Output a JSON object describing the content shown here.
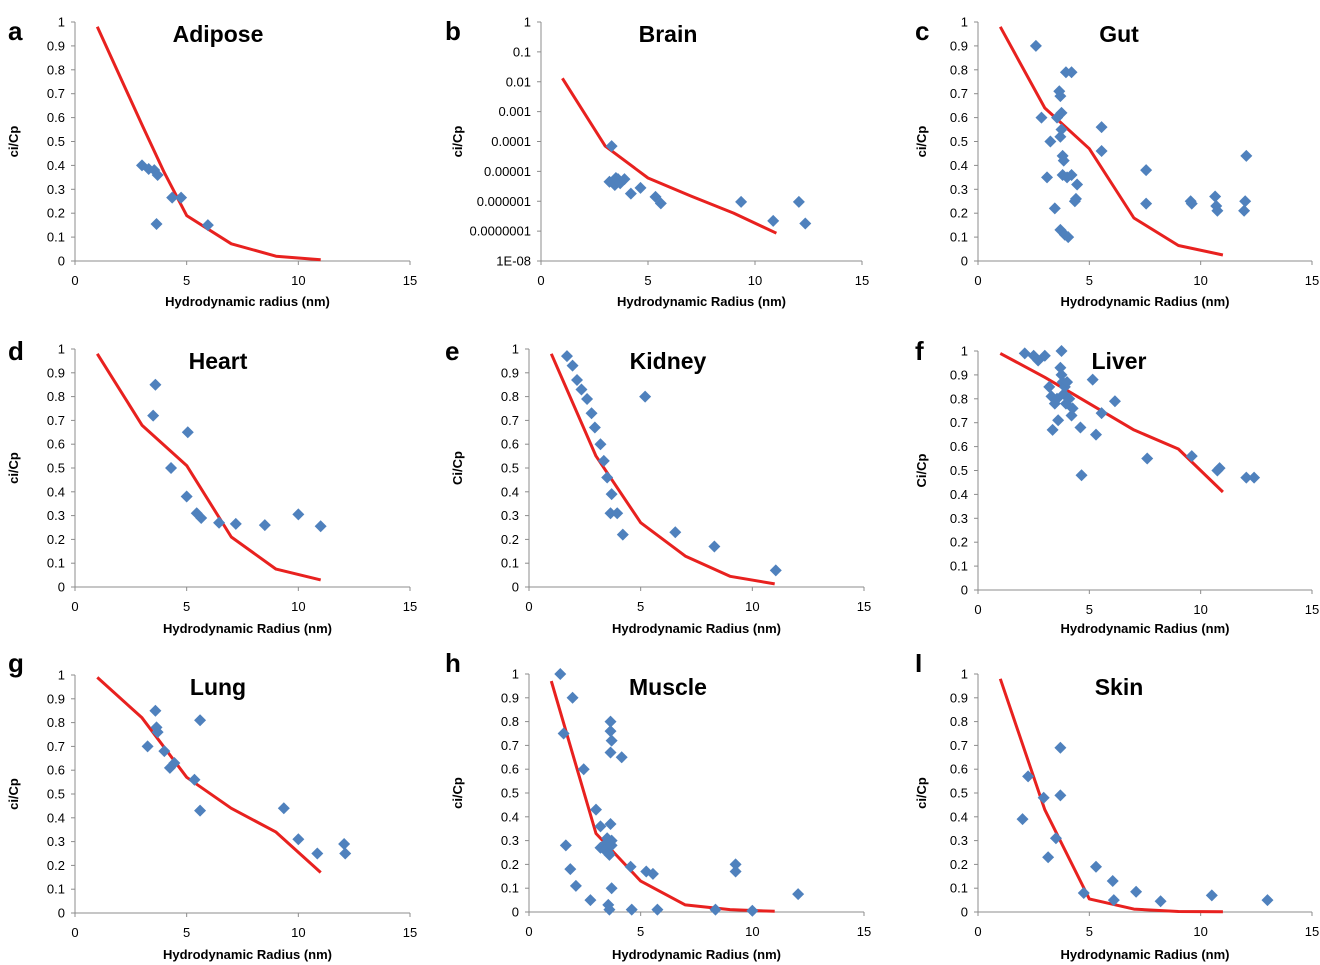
{
  "chart_data": [
    {
      "type": "scatter",
      "panel_letter": "a",
      "title": "Adipose",
      "xlabel": "Hydrodynamic radius (nm)",
      "ylabel": "ci/Cp",
      "xlim": [
        0,
        15
      ],
      "ylim": [
        0,
        1
      ],
      "yscale": "linear",
      "xticks": [
        "0",
        "5",
        "10",
        "15"
      ],
      "yticks": [
        "0",
        "0.1",
        "0.2",
        "0.3",
        "0.4",
        "0.5",
        "0.6",
        "0.7",
        "0.8",
        "0.9",
        "1"
      ],
      "points": [
        [
          3.0,
          0.4
        ],
        [
          3.3,
          0.385
        ],
        [
          3.55,
          0.38
        ],
        [
          3.7,
          0.36
        ],
        [
          3.65,
          0.155
        ],
        [
          4.35,
          0.265
        ],
        [
          4.75,
          0.265
        ],
        [
          5.95,
          0.15
        ]
      ],
      "line": [
        [
          1.0,
          0.98
        ],
        [
          3.0,
          0.57
        ],
        [
          4.0,
          0.37
        ],
        [
          5.0,
          0.19
        ],
        [
          7.0,
          0.072
        ],
        [
          9.0,
          0.02
        ],
        [
          11.0,
          0.005
        ]
      ],
      "colors": {
        "points": "#4f81bd",
        "line": "#e8211f"
      }
    },
    {
      "type": "scatter",
      "panel_letter": "b",
      "title": "Brain",
      "xlabel": "Hydrodynamic Radius (nm)",
      "ylabel": "ci/Cp",
      "xlim": [
        0,
        15
      ],
      "ylim": [
        1e-08,
        1
      ],
      "yscale": "log",
      "xticks": [
        "0",
        "5",
        "10",
        "15"
      ],
      "yticks": [
        "1E-08",
        "0.0000001",
        "0.000001",
        "0.00001",
        "0.0001",
        "0.001",
        "0.01",
        "0.1",
        "1"
      ],
      "points": [
        [
          3.3,
          7e-05
        ],
        [
          3.2,
          4.5e-06
        ],
        [
          3.45,
          3.5e-06
        ],
        [
          3.6,
          5.5e-06
        ],
        [
          3.5,
          6e-06
        ],
        [
          3.7,
          4e-06
        ],
        [
          3.9,
          5.5e-06
        ],
        [
          4.2,
          1.8e-06
        ],
        [
          4.65,
          2.8e-06
        ],
        [
          5.35,
          1.4e-06
        ],
        [
          5.6,
          8.5e-07
        ],
        [
          9.35,
          9.5e-07
        ],
        [
          10.85,
          2.2e-07
        ],
        [
          12.05,
          9.5e-07
        ],
        [
          12.35,
          1.8e-07
        ]
      ],
      "line": [
        [
          1.0,
          0.013
        ],
        [
          3.0,
          7e-05
        ],
        [
          5.0,
          6e-06
        ],
        [
          7.0,
          1.5e-06
        ],
        [
          9.0,
          4e-07
        ],
        [
          11.0,
          8.5e-08
        ]
      ],
      "colors": {
        "points": "#4f81bd",
        "line": "#e8211f"
      }
    },
    {
      "type": "scatter",
      "panel_letter": "c",
      "title": "Gut",
      "xlabel": "Hydrodynamic Radius (nm)",
      "ylabel": "ci/Cp",
      "xlim": [
        0,
        15
      ],
      "ylim": [
        0,
        1
      ],
      "yscale": "linear",
      "xticks": [
        "0",
        "5",
        "10",
        "15"
      ],
      "yticks": [
        "0",
        "0.1",
        "0.2",
        "0.3",
        "0.4",
        "0.5",
        "0.6",
        "0.7",
        "0.8",
        "0.9",
        "1"
      ],
      "points": [
        [
          2.6,
          0.9
        ],
        [
          2.85,
          0.6
        ],
        [
          3.1,
          0.35
        ],
        [
          3.25,
          0.5
        ],
        [
          3.45,
          0.22
        ],
        [
          3.55,
          0.6
        ],
        [
          3.65,
          0.71
        ],
        [
          3.7,
          0.69
        ],
        [
          3.75,
          0.55
        ],
        [
          3.7,
          0.52
        ],
        [
          3.8,
          0.44
        ],
        [
          3.85,
          0.42
        ],
        [
          3.7,
          0.13
        ],
        [
          3.9,
          0.11
        ],
        [
          4.05,
          0.1
        ],
        [
          3.95,
          0.79
        ],
        [
          4.2,
          0.79
        ],
        [
          3.8,
          0.36
        ],
        [
          4.0,
          0.35
        ],
        [
          4.2,
          0.36
        ],
        [
          3.75,
          0.62
        ],
        [
          4.4,
          0.26
        ],
        [
          4.45,
          0.32
        ],
        [
          4.35,
          0.25
        ],
        [
          5.55,
          0.56
        ],
        [
          5.55,
          0.46
        ],
        [
          7.55,
          0.38
        ],
        [
          7.55,
          0.24
        ],
        [
          9.55,
          0.25
        ],
        [
          9.6,
          0.24
        ],
        [
          10.65,
          0.27
        ],
        [
          10.7,
          0.23
        ],
        [
          10.75,
          0.21
        ],
        [
          12.05,
          0.44
        ],
        [
          12.0,
          0.25
        ],
        [
          11.95,
          0.21
        ]
      ],
      "line": [
        [
          1.0,
          0.98
        ],
        [
          3.0,
          0.64
        ],
        [
          5.0,
          0.47
        ],
        [
          7.0,
          0.18
        ],
        [
          9.0,
          0.065
        ],
        [
          11.0,
          0.025
        ]
      ],
      "colors": {
        "points": "#4f81bd",
        "line": "#e8211f"
      }
    },
    {
      "type": "scatter",
      "panel_letter": "d",
      "title": "Heart",
      "xlabel": "Hydrodynamic Radius (nm)",
      "ylabel": "ci/Cp",
      "xlim": [
        0,
        15
      ],
      "ylim": [
        0,
        1
      ],
      "yscale": "linear",
      "xticks": [
        "0",
        "5",
        "10",
        "15"
      ],
      "yticks": [
        "0",
        "0.1",
        "0.2",
        "0.3",
        "0.4",
        "0.5",
        "0.6",
        "0.7",
        "0.8",
        "0.9",
        "1"
      ],
      "points": [
        [
          3.6,
          0.85
        ],
        [
          3.5,
          0.72
        ],
        [
          5.05,
          0.65
        ],
        [
          4.3,
          0.5
        ],
        [
          5.0,
          0.38
        ],
        [
          5.45,
          0.31
        ],
        [
          5.65,
          0.29
        ],
        [
          6.45,
          0.27
        ],
        [
          7.2,
          0.265
        ],
        [
          8.5,
          0.26
        ],
        [
          10.0,
          0.305
        ],
        [
          11.0,
          0.255
        ]
      ],
      "line": [
        [
          1.0,
          0.98
        ],
        [
          3.0,
          0.68
        ],
        [
          5.0,
          0.51
        ],
        [
          7.0,
          0.21
        ],
        [
          9.0,
          0.075
        ],
        [
          11.0,
          0.03
        ]
      ],
      "colors": {
        "points": "#4f81bd",
        "line": "#e8211f"
      }
    },
    {
      "type": "scatter",
      "panel_letter": "e",
      "title": "Kidney",
      "xlabel": "Hydrodynamic Radius (nm)",
      "ylabel": "Ci/Cp",
      "xlim": [
        0,
        15
      ],
      "ylim": [
        0,
        1
      ],
      "yscale": "linear",
      "xticks": [
        "0",
        "5",
        "10",
        "15"
      ],
      "yticks": [
        "0",
        "0.1",
        "0.2",
        "0.3",
        "0.4",
        "0.5",
        "0.6",
        "0.7",
        "0.8",
        "0.9",
        "1"
      ],
      "points": [
        [
          1.7,
          0.97
        ],
        [
          1.95,
          0.93
        ],
        [
          2.15,
          0.87
        ],
        [
          2.35,
          0.83
        ],
        [
          2.6,
          0.79
        ],
        [
          2.8,
          0.73
        ],
        [
          2.95,
          0.67
        ],
        [
          3.2,
          0.6
        ],
        [
          3.35,
          0.53
        ],
        [
          3.5,
          0.46
        ],
        [
          3.7,
          0.39
        ],
        [
          3.65,
          0.31
        ],
        [
          3.95,
          0.31
        ],
        [
          4.2,
          0.22
        ],
        [
          5.2,
          0.8
        ],
        [
          6.55,
          0.23
        ],
        [
          8.3,
          0.17
        ],
        [
          11.05,
          0.07
        ]
      ],
      "line": [
        [
          1.0,
          0.98
        ],
        [
          3.0,
          0.55
        ],
        [
          5.0,
          0.27
        ],
        [
          7.0,
          0.13
        ],
        [
          9.0,
          0.045
        ],
        [
          11.0,
          0.013
        ]
      ],
      "colors": {
        "points": "#4f81bd",
        "line": "#e8211f"
      }
    },
    {
      "type": "scatter",
      "panel_letter": "f",
      "title": "Liver",
      "xlabel": "Hydrodynamic Radius (nm)",
      "ylabel": "Ci/Cp",
      "xlim": [
        0,
        15
      ],
      "ylim": [
        0,
        1
      ],
      "yscale": "linear",
      "xticks": [
        "0",
        "5",
        "10",
        "15"
      ],
      "yticks": [
        "0",
        "0.1",
        "0.2",
        "0.3",
        "0.4",
        "0.5",
        "0.6",
        "0.7",
        "0.8",
        "0.9",
        "1"
      ],
      "points": [
        [
          2.1,
          0.99
        ],
        [
          2.5,
          0.98
        ],
        [
          2.7,
          0.96
        ],
        [
          3.0,
          0.98
        ],
        [
          3.2,
          0.85
        ],
        [
          3.3,
          0.81
        ],
        [
          3.35,
          0.67
        ],
        [
          3.45,
          0.78
        ],
        [
          3.55,
          0.8
        ],
        [
          3.6,
          0.71
        ],
        [
          3.75,
          1.0
        ],
        [
          3.7,
          0.93
        ],
        [
          3.75,
          0.9
        ],
        [
          3.8,
          0.87
        ],
        [
          3.85,
          0.82
        ],
        [
          3.95,
          0.78
        ],
        [
          4.1,
          0.8
        ],
        [
          4.25,
          0.76
        ],
        [
          4.2,
          0.73
        ],
        [
          3.9,
          0.85
        ],
        [
          4.0,
          0.87
        ],
        [
          4.6,
          0.68
        ],
        [
          4.65,
          0.48
        ],
        [
          5.15,
          0.88
        ],
        [
          5.3,
          0.65
        ],
        [
          5.55,
          0.74
        ],
        [
          6.15,
          0.79
        ],
        [
          7.6,
          0.55
        ],
        [
          9.6,
          0.56
        ],
        [
          10.75,
          0.5
        ],
        [
          10.85,
          0.51
        ],
        [
          12.05,
          0.47
        ],
        [
          12.4,
          0.47
        ]
      ],
      "line": [
        [
          1.0,
          0.99
        ],
        [
          3.0,
          0.89
        ],
        [
          5.0,
          0.78
        ],
        [
          7.0,
          0.67
        ],
        [
          9.0,
          0.59
        ],
        [
          11.0,
          0.41
        ]
      ],
      "colors": {
        "points": "#4f81bd",
        "line": "#e8211f"
      }
    },
    {
      "type": "scatter",
      "panel_letter": "g",
      "title": "Lung",
      "xlabel": "Hydrodynamic Radius (nm)",
      "ylabel": "ci/Cp",
      "xlim": [
        0,
        15
      ],
      "ylim": [
        0,
        1
      ],
      "yscale": "linear",
      "xticks": [
        "0",
        "5",
        "10",
        "15"
      ],
      "yticks": [
        "0",
        "0.1",
        "0.2",
        "0.3",
        "0.4",
        "0.5",
        "0.6",
        "0.7",
        "0.8",
        "0.9",
        "1"
      ],
      "points": [
        [
          3.25,
          0.7
        ],
        [
          3.6,
          0.85
        ],
        [
          3.65,
          0.78
        ],
        [
          3.7,
          0.76
        ],
        [
          4.0,
          0.68
        ],
        [
          4.25,
          0.61
        ],
        [
          4.45,
          0.63
        ],
        [
          5.35,
          0.56
        ],
        [
          5.6,
          0.81
        ],
        [
          5.6,
          0.43
        ],
        [
          9.35,
          0.44
        ],
        [
          10.0,
          0.31
        ],
        [
          10.85,
          0.25
        ],
        [
          12.05,
          0.29
        ],
        [
          12.1,
          0.25
        ]
      ],
      "line": [
        [
          1.0,
          0.99
        ],
        [
          3.0,
          0.82
        ],
        [
          5.0,
          0.57
        ],
        [
          7.0,
          0.44
        ],
        [
          9.0,
          0.34
        ],
        [
          11.0,
          0.17
        ]
      ],
      "colors": {
        "points": "#4f81bd",
        "line": "#e8211f"
      }
    },
    {
      "type": "scatter",
      "panel_letter": "h",
      "title": "Muscle",
      "xlabel": "Hydrodynamic Radius (nm)",
      "ylabel": "ci/Cp",
      "xlim": [
        0,
        15
      ],
      "ylim": [
        0,
        1
      ],
      "yscale": "linear",
      "xticks": [
        "0",
        "5",
        "10",
        "15"
      ],
      "yticks": [
        "0",
        "0.1",
        "0.2",
        "0.3",
        "0.4",
        "0.5",
        "0.6",
        "0.7",
        "0.8",
        "0.9",
        "1"
      ],
      "points": [
        [
          1.4,
          1.0
        ],
        [
          1.55,
          0.75
        ],
        [
          1.95,
          0.9
        ],
        [
          1.65,
          0.28
        ],
        [
          1.85,
          0.18
        ],
        [
          2.1,
          0.11
        ],
        [
          2.45,
          0.6
        ],
        [
          2.75,
          0.05
        ],
        [
          3.0,
          0.43
        ],
        [
          3.2,
          0.36
        ],
        [
          3.2,
          0.27
        ],
        [
          3.35,
          0.28
        ],
        [
          3.4,
          0.26
        ],
        [
          3.5,
          0.31
        ],
        [
          3.55,
          0.25
        ],
        [
          3.55,
          0.03
        ],
        [
          3.6,
          0.01
        ],
        [
          3.6,
          0.24
        ],
        [
          3.65,
          0.8
        ],
        [
          3.65,
          0.76
        ],
        [
          3.7,
          0.72
        ],
        [
          3.65,
          0.67
        ],
        [
          3.65,
          0.37
        ],
        [
          3.7,
          0.3
        ],
        [
          3.7,
          0.28
        ],
        [
          3.7,
          0.1
        ],
        [
          4.15,
          0.65
        ],
        [
          4.55,
          0.19
        ],
        [
          4.6,
          0.01
        ],
        [
          5.25,
          0.17
        ],
        [
          5.55,
          0.16
        ],
        [
          5.75,
          0.01
        ],
        [
          8.35,
          0.01
        ],
        [
          9.25,
          0.2
        ],
        [
          9.25,
          0.17
        ],
        [
          10.0,
          0.005
        ],
        [
          12.05,
          0.075
        ]
      ],
      "line": [
        [
          1.0,
          0.97
        ],
        [
          3.0,
          0.33
        ],
        [
          5.0,
          0.13
        ],
        [
          7.0,
          0.03
        ],
        [
          9.0,
          0.01
        ],
        [
          11.0,
          0.003
        ]
      ],
      "colors": {
        "points": "#4f81bd",
        "line": "#e8211f"
      }
    },
    {
      "type": "scatter",
      "panel_letter": "I",
      "title": "Skin",
      "xlabel": "Hydrodynamic Radius (nm)",
      "ylabel": "ci/Cp",
      "xlim": [
        0,
        15
      ],
      "ylim": [
        0,
        1
      ],
      "yscale": "linear",
      "xticks": [
        "0",
        "5",
        "10",
        "15"
      ],
      "yticks": [
        "0",
        "0.1",
        "0.2",
        "0.3",
        "0.4",
        "0.5",
        "0.6",
        "0.7",
        "0.8",
        "0.9",
        "1"
      ],
      "points": [
        [
          2.0,
          0.39
        ],
        [
          2.25,
          0.57
        ],
        [
          2.95,
          0.48
        ],
        [
          3.15,
          0.23
        ],
        [
          3.5,
          0.31
        ],
        [
          3.7,
          0.69
        ],
        [
          3.7,
          0.49
        ],
        [
          4.75,
          0.08
        ],
        [
          5.3,
          0.19
        ],
        [
          6.05,
          0.13
        ],
        [
          6.1,
          0.05
        ],
        [
          7.1,
          0.085
        ],
        [
          8.2,
          0.045
        ],
        [
          10.5,
          0.07
        ],
        [
          13.0,
          0.05
        ]
      ],
      "line": [
        [
          1.0,
          0.98
        ],
        [
          3.0,
          0.43
        ],
        [
          5.0,
          0.055
        ],
        [
          7.0,
          0.012
        ],
        [
          9.0,
          0.002
        ],
        [
          11.0,
          0.001
        ]
      ],
      "colors": {
        "points": "#4f81bd",
        "line": "#e8211f"
      }
    }
  ]
}
